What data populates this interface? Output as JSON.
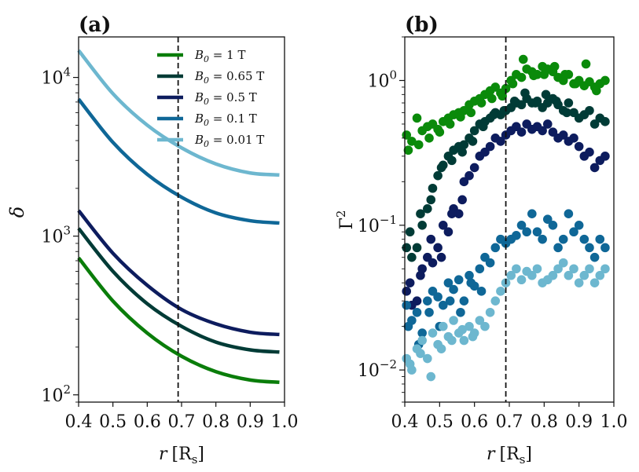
{
  "chart_data": [
    {
      "panel": "(a)",
      "type": "line",
      "xlabel": "r [R_s]",
      "xlabel_var": "r",
      "xlabel_unit": "[R",
      "xlabel_sub": "s",
      "xlabel_close": "]",
      "ylabel": "δ",
      "xlim": [
        0.4,
        1.0
      ],
      "ylim": [
        90,
        18000
      ],
      "yscale": "log",
      "x_ticks": [
        "0.4",
        "0.5",
        "0.6",
        "0.7",
        "0.8",
        "0.9",
        "1.0"
      ],
      "y_ticks": [
        {
          "base": "10",
          "exp": "2"
        },
        {
          "base": "10",
          "exp": "3"
        },
        {
          "base": "10",
          "exp": "4"
        }
      ],
      "vline_x": 0.69,
      "legend_position": "top-right",
      "series": [
        {
          "name": "B_0 = 1 T",
          "label_var": "B",
          "label_sub": "0",
          "label_rest": " = 1 T",
          "color": "#0a7d0a",
          "x": [
            0.4,
            0.5,
            0.6,
            0.7,
            0.8,
            0.9,
            0.985
          ],
          "values": [
            730,
            390,
            245,
            175,
            140,
            124,
            120
          ]
        },
        {
          "name": "B_0 = 0.65 T",
          "label_var": "B",
          "label_sub": "0",
          "label_rest": " = 0.65 T",
          "color": "#003b36",
          "x": [
            0.4,
            0.5,
            0.6,
            0.7,
            0.8,
            0.9,
            0.985
          ],
          "values": [
            1120,
            600,
            375,
            270,
            215,
            192,
            186
          ]
        },
        {
          "name": "B_0 = 0.5 T",
          "label_var": "B",
          "label_sub": "0",
          "label_rest": " = 0.5 T",
          "color": "#0d1c5e",
          "x": [
            0.4,
            0.5,
            0.6,
            0.7,
            0.8,
            0.9,
            0.985
          ],
          "values": [
            1450,
            780,
            490,
            345,
            280,
            248,
            240
          ]
        },
        {
          "name": "B_0 = 0.1 T",
          "label_var": "B",
          "label_sub": "0",
          "label_rest": " = 0.1 T",
          "color": "#0f6797",
          "x": [
            0.4,
            0.5,
            0.6,
            0.7,
            0.8,
            0.9,
            0.985
          ],
          "values": [
            7300,
            3900,
            2450,
            1760,
            1400,
            1250,
            1210
          ]
        },
        {
          "name": "B_0 = 0.01 T",
          "label_var": "B",
          "label_sub": "0",
          "label_rest": " = 0.01 T",
          "color": "#6db7cf",
          "x": [
            0.4,
            0.5,
            0.6,
            0.7,
            0.8,
            0.9,
            0.985
          ],
          "values": [
            14800,
            7900,
            5000,
            3600,
            2850,
            2500,
            2430
          ]
        }
      ]
    },
    {
      "panel": "(b)",
      "type": "scatter",
      "xlabel": "r [R_s]",
      "xlabel_var": "r",
      "xlabel_unit": "[R",
      "xlabel_sub": "s",
      "xlabel_close": "]",
      "ylabel": "Γ²",
      "ylabel_base": "Γ",
      "ylabel_exp": "2",
      "xlim": [
        0.4,
        1.0
      ],
      "ylim": [
        0.006,
        2.0
      ],
      "yscale": "log",
      "x_ticks": [
        "0.4",
        "0.5",
        "0.6",
        "0.7",
        "0.8",
        "0.9",
        "1.0"
      ],
      "y_ticks": [
        {
          "base": "10",
          "exp": "−2",
          "value": 0.01
        },
        {
          "base": "10",
          "exp": "−1",
          "value": 0.1
        },
        {
          "base": "10",
          "exp": "0",
          "value": 1
        }
      ],
      "vline_x": 0.69,
      "series": [
        {
          "name": "B_0 = 1 T",
          "color": "#0a8a0a",
          "x": [
            0.405,
            0.42,
            0.435,
            0.45,
            0.465,
            0.48,
            0.495,
            0.51,
            0.525,
            0.54,
            0.555,
            0.57,
            0.585,
            0.6,
            0.615,
            0.63,
            0.645,
            0.66,
            0.675,
            0.69,
            0.705,
            0.72,
            0.735,
            0.75,
            0.765,
            0.78,
            0.795,
            0.81,
            0.825,
            0.84,
            0.855,
            0.87,
            0.885,
            0.9,
            0.915,
            0.93,
            0.945,
            0.96,
            0.975,
            0.41,
            0.44,
            0.47,
            0.5,
            0.53,
            0.56,
            0.59,
            0.62,
            0.65,
            0.68,
            0.71,
            0.74,
            0.77,
            0.8,
            0.83,
            0.86,
            0.89,
            0.92,
            0.95
          ],
          "values": [
            0.42,
            0.38,
            0.55,
            0.45,
            0.48,
            0.5,
            0.46,
            0.52,
            0.55,
            0.58,
            0.6,
            0.62,
            0.68,
            0.72,
            0.75,
            0.8,
            0.85,
            0.9,
            0.82,
            0.88,
            1.0,
            1.1,
            1.05,
            1.2,
            1.15,
            1.1,
            1.25,
            1.2,
            1.15,
            1.05,
            1.0,
            1.1,
            0.95,
            1.0,
            0.92,
            0.98,
            0.9,
            0.95,
            1.0,
            0.33,
            0.36,
            0.4,
            0.44,
            0.5,
            0.56,
            0.6,
            0.7,
            0.75,
            0.78,
            0.95,
            1.4,
            1.08,
            1.1,
            1.25,
            1.1,
            0.95,
            1.3,
            0.85
          ]
        },
        {
          "name": "B_0 = 0.65 T",
          "color": "#003b36",
          "x": [
            0.405,
            0.42,
            0.435,
            0.45,
            0.465,
            0.48,
            0.495,
            0.51,
            0.525,
            0.54,
            0.555,
            0.57,
            0.585,
            0.6,
            0.615,
            0.63,
            0.645,
            0.66,
            0.675,
            0.69,
            0.705,
            0.72,
            0.735,
            0.75,
            0.765,
            0.78,
            0.795,
            0.81,
            0.825,
            0.84,
            0.855,
            0.87,
            0.885,
            0.9,
            0.915,
            0.93,
            0.945,
            0.96,
            0.975,
            0.415,
            0.445,
            0.475,
            0.505,
            0.535,
            0.565,
            0.595,
            0.625,
            0.655,
            0.685,
            0.715,
            0.745,
            0.775,
            0.805,
            0.835,
            0.865
          ],
          "values": [
            0.07,
            0.06,
            0.07,
            0.1,
            0.13,
            0.18,
            0.22,
            0.26,
            0.3,
            0.33,
            0.35,
            0.36,
            0.4,
            0.45,
            0.5,
            0.52,
            0.55,
            0.6,
            0.58,
            0.62,
            0.65,
            0.7,
            0.68,
            0.75,
            0.7,
            0.72,
            0.65,
            0.7,
            0.75,
            0.68,
            0.62,
            0.7,
            0.6,
            0.55,
            0.58,
            0.62,
            0.5,
            0.55,
            0.52,
            0.09,
            0.12,
            0.15,
            0.25,
            0.28,
            0.32,
            0.38,
            0.48,
            0.58,
            0.62,
            0.72,
            0.82,
            0.7,
            0.8,
            0.72,
            0.6
          ]
        },
        {
          "name": "B_0 = 0.5 T",
          "color": "#0d1c5e",
          "x": [
            0.405,
            0.42,
            0.435,
            0.45,
            0.465,
            0.48,
            0.495,
            0.51,
            0.525,
            0.54,
            0.555,
            0.57,
            0.585,
            0.6,
            0.615,
            0.63,
            0.645,
            0.66,
            0.675,
            0.69,
            0.705,
            0.72,
            0.735,
            0.75,
            0.765,
            0.78,
            0.795,
            0.81,
            0.825,
            0.84,
            0.855,
            0.87,
            0.885,
            0.9,
            0.915,
            0.93,
            0.945,
            0.96,
            0.975,
            0.415,
            0.445,
            0.475,
            0.505,
            0.535,
            0.565
          ],
          "values": [
            0.035,
            0.028,
            0.03,
            0.05,
            0.06,
            0.055,
            0.07,
            0.1,
            0.09,
            0.13,
            0.12,
            0.2,
            0.22,
            0.25,
            0.3,
            0.32,
            0.35,
            0.4,
            0.38,
            0.42,
            0.45,
            0.48,
            0.44,
            0.5,
            0.46,
            0.48,
            0.45,
            0.5,
            0.44,
            0.4,
            0.42,
            0.38,
            0.4,
            0.35,
            0.3,
            0.32,
            0.25,
            0.28,
            0.3,
            0.04,
            0.045,
            0.08,
            0.06,
            0.12,
            0.15
          ]
        },
        {
          "name": "B_0 = 0.1 T",
          "color": "#0f6797",
          "x": [
            0.405,
            0.42,
            0.435,
            0.45,
            0.465,
            0.48,
            0.495,
            0.51,
            0.525,
            0.54,
            0.555,
            0.57,
            0.585,
            0.6,
            0.615,
            0.63,
            0.645,
            0.66,
            0.675,
            0.69,
            0.705,
            0.72,
            0.735,
            0.75,
            0.765,
            0.78,
            0.795,
            0.81,
            0.825,
            0.84,
            0.855,
            0.87,
            0.885,
            0.9,
            0.915,
            0.93,
            0.945,
            0.96,
            0.975,
            0.41,
            0.44,
            0.47,
            0.5,
            0.53,
            0.56,
            0.59,
            0.62
          ],
          "values": [
            0.028,
            0.022,
            0.025,
            0.018,
            0.03,
            0.035,
            0.032,
            0.028,
            0.04,
            0.036,
            0.042,
            0.03,
            0.045,
            0.038,
            0.05,
            0.06,
            0.055,
            0.07,
            0.08,
            0.075,
            0.08,
            0.085,
            0.1,
            0.09,
            0.12,
            0.09,
            0.08,
            0.11,
            0.1,
            0.07,
            0.08,
            0.12,
            0.09,
            0.1,
            0.08,
            0.07,
            0.06,
            0.08,
            0.07,
            0.02,
            0.015,
            0.025,
            0.02,
            0.03,
            0.025,
            0.04,
            0.035
          ]
        },
        {
          "name": "B_0 = 0.01 T",
          "color": "#6db7cf",
          "x": [
            0.405,
            0.42,
            0.435,
            0.45,
            0.465,
            0.48,
            0.495,
            0.51,
            0.525,
            0.54,
            0.555,
            0.57,
            0.585,
            0.6,
            0.615,
            0.63,
            0.645,
            0.66,
            0.675,
            0.69,
            0.705,
            0.72,
            0.735,
            0.75,
            0.765,
            0.78,
            0.795,
            0.81,
            0.825,
            0.84,
            0.855,
            0.87,
            0.885,
            0.9,
            0.915,
            0.93,
            0.945,
            0.96,
            0.975,
            0.415,
            0.445,
            0.475,
            0.505,
            0.535,
            0.565,
            0.595
          ],
          "values": [
            0.012,
            0.01,
            0.014,
            0.016,
            0.012,
            0.018,
            0.015,
            0.02,
            0.017,
            0.022,
            0.018,
            0.016,
            0.02,
            0.018,
            0.022,
            0.02,
            0.025,
            0.03,
            0.035,
            0.04,
            0.045,
            0.05,
            0.042,
            0.048,
            0.045,
            0.05,
            0.04,
            0.042,
            0.045,
            0.05,
            0.055,
            0.045,
            0.05,
            0.04,
            0.045,
            0.05,
            0.04,
            0.045,
            0.05,
            0.011,
            0.013,
            0.009,
            0.014,
            0.016,
            0.019,
            0.017
          ]
        }
      ]
    }
  ]
}
